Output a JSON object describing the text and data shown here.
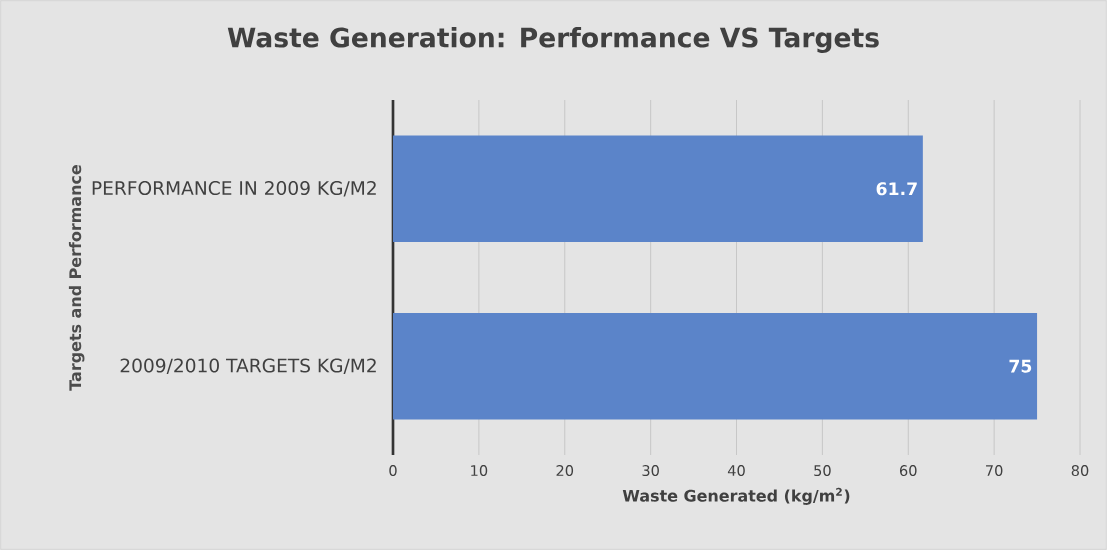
{
  "chart_data": {
    "type": "bar",
    "orientation": "horizontal",
    "title": "Waste Generation: Performance VS Targets",
    "xlabel": "Waste Generated (kg/m$^{2}$)",
    "ylabel": "Targets and Performance",
    "categories": [
      "PERFORMANCE IN 2009 KG/M2",
      "2009/2010 TARGETS KG/M2"
    ],
    "values": [
      61.7,
      75
    ],
    "value_labels": [
      "61.7",
      "75"
    ],
    "color": "#5b84c9",
    "xlim": [
      0,
      80
    ],
    "xticks": [
      0,
      10,
      20,
      30,
      40,
      50,
      60,
      70,
      80
    ],
    "grid": "x"
  }
}
